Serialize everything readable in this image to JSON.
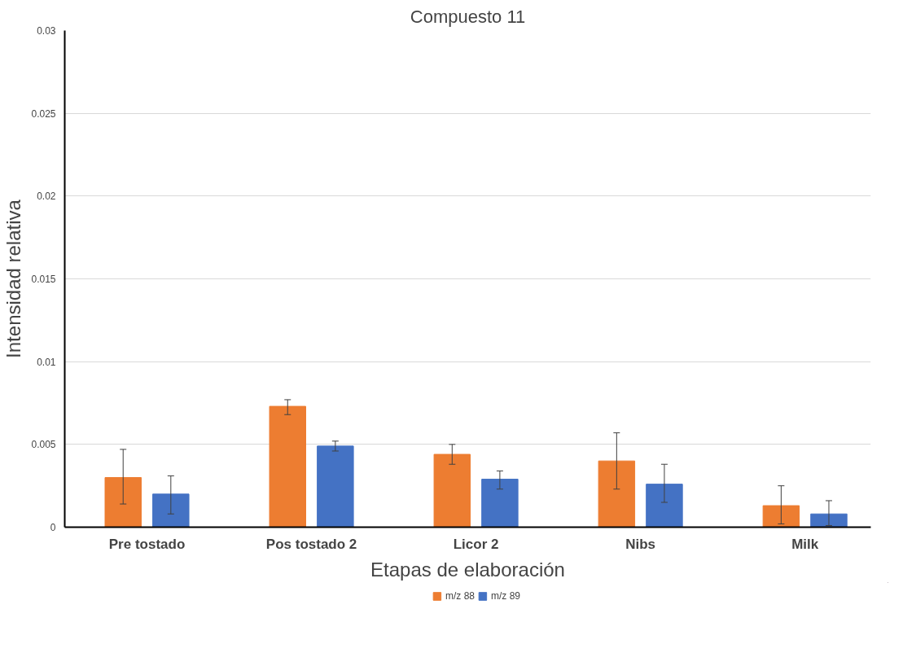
{
  "chart_data": {
    "type": "bar",
    "title": "Compuesto 11",
    "xlabel": "Etapas de elaboración",
    "ylabel": "Intensidad relativa",
    "categories": [
      "Pre tostado",
      "Pos tostado 2",
      "Licor 2",
      "Nibs",
      "Milk"
    ],
    "series": [
      {
        "name": "m/z 88",
        "color": "#ed7d31",
        "values": [
          0.003,
          0.0073,
          0.0044,
          0.004,
          0.0013
        ],
        "errors": [
          [
            0.0014,
            0.0047
          ],
          [
            0.0068,
            0.0077
          ],
          [
            0.0038,
            0.005
          ],
          [
            0.0023,
            0.0057
          ],
          [
            0.0002,
            0.0025
          ]
        ]
      },
      {
        "name": "m/z 89",
        "color": "#4472c4",
        "values": [
          0.002,
          0.0049,
          0.0029,
          0.0026,
          0.0008
        ],
        "errors": [
          [
            0.0008,
            0.0031
          ],
          [
            0.0046,
            0.0052
          ],
          [
            0.0023,
            0.0034
          ],
          [
            0.0015,
            0.0038
          ],
          [
            0.0001,
            0.0016
          ]
        ]
      }
    ],
    "ylim": [
      0,
      0.03
    ],
    "yticks": [
      0,
      0.005,
      0.01,
      0.015,
      0.02,
      0.025,
      0.03
    ],
    "grid": "y",
    "legend": "bottom"
  }
}
